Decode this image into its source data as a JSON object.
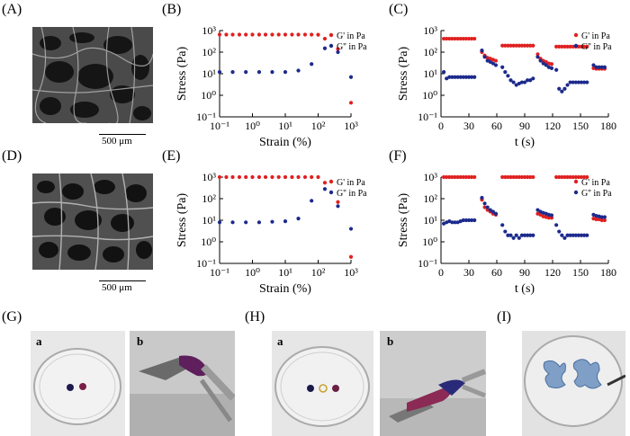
{
  "labels": {
    "A": "(A)",
    "B": "(B)",
    "C": "(C)",
    "D": "(D)",
    "E": "(E)",
    "F": "(F)",
    "G": "(G)",
    "H": "(H)",
    "I": "(I)",
    "ga": "a",
    "gb": "b",
    "ha": "a",
    "hb": "b"
  },
  "scale_A": "500 μm",
  "scale_D": "500 μm",
  "chart_data": [
    {
      "id": "B",
      "type": "scatter",
      "ylabel": "Stress (Pa)",
      "xlabel": "Strain (%)",
      "xscale": "log",
      "yscale": "log",
      "xlim": [
        0.1,
        1000
      ],
      "ylim": [
        0.1,
        1000
      ],
      "xticks": [
        "10⁻¹",
        "10⁰",
        "10¹",
        "10²",
        "10³"
      ],
      "yticks": [
        "10⁻¹",
        "10⁰",
        "10¹",
        "10²",
        "10³"
      ],
      "legend_position": "top-right",
      "series": [
        {
          "name": "G' in Pa",
          "color": "#e02020",
          "x": [
            0.1,
            0.16,
            0.25,
            0.4,
            0.63,
            1,
            1.6,
            2.5,
            4,
            6.3,
            10,
            16,
            25,
            40,
            63,
            100,
            160,
            400,
            1000
          ],
          "y": [
            650,
            650,
            650,
            650,
            650,
            650,
            650,
            650,
            650,
            650,
            650,
            650,
            650,
            650,
            650,
            640,
            420,
            140,
            0.45
          ]
        },
        {
          "name": "G'' in Pa",
          "color": "#1c2a8c",
          "x": [
            0.1,
            0.25,
            0.63,
            1.6,
            4,
            10,
            25,
            63,
            160,
            400,
            1000
          ],
          "y": [
            12,
            12,
            12,
            12,
            12,
            12,
            14,
            28,
            150,
            100,
            7
          ]
        }
      ]
    },
    {
      "id": "C",
      "type": "scatter",
      "ylabel": "Stress (Pa)",
      "xlabel": "t (s)",
      "yscale": "log",
      "xlim": [
        0,
        180
      ],
      "ylim": [
        0.1,
        1000
      ],
      "xticks": [
        "0",
        "30",
        "60",
        "90",
        "120",
        "150",
        "180"
      ],
      "yticks": [
        "10⁻¹",
        "10⁰",
        "10¹",
        "10²",
        "10³"
      ],
      "legend_position": "top-right",
      "series": [
        {
          "name": "G' in Pa",
          "color": "#e02020",
          "x": [
            3,
            6,
            9,
            12,
            15,
            18,
            21,
            24,
            27,
            30,
            33,
            36,
            44,
            47,
            50,
            53,
            56,
            59,
            66,
            69,
            72,
            75,
            78,
            81,
            84,
            87,
            90,
            93,
            96,
            99,
            104,
            107,
            110,
            113,
            116,
            119,
            124,
            127,
            130,
            133,
            136,
            139,
            142,
            145,
            148,
            151,
            154,
            157,
            164,
            167,
            170,
            173,
            176
          ],
          "y": [
            420,
            420,
            420,
            420,
            420,
            420,
            420,
            420,
            420,
            420,
            420,
            420,
            100,
            70,
            55,
            50,
            45,
            40,
            200,
            200,
            200,
            200,
            200,
            200,
            200,
            200,
            200,
            200,
            200,
            200,
            80,
            50,
            40,
            35,
            30,
            28,
            180,
            180,
            180,
            180,
            180,
            180,
            180,
            180,
            180,
            180,
            180,
            180,
            18,
            17,
            17,
            17,
            17
          ]
        },
        {
          "name": "G'' in Pa",
          "color": "#1c2a8c",
          "x": [
            3,
            6,
            9,
            12,
            15,
            18,
            21,
            24,
            27,
            30,
            33,
            36,
            44,
            47,
            50,
            53,
            56,
            59,
            66,
            69,
            72,
            75,
            78,
            81,
            84,
            87,
            90,
            93,
            96,
            99,
            104,
            107,
            110,
            113,
            116,
            119,
            124,
            127,
            130,
            133,
            136,
            139,
            142,
            145,
            148,
            151,
            154,
            157,
            164,
            167,
            170,
            173,
            176
          ],
          "y": [
            12,
            6,
            7,
            7,
            7,
            7,
            7,
            7,
            7,
            7,
            7,
            7,
            120,
            60,
            40,
            35,
            30,
            25,
            20,
            12,
            8,
            5,
            4,
            3,
            3.5,
            4,
            4,
            5,
            5,
            6,
            60,
            40,
            30,
            25,
            20,
            18,
            15,
            2,
            1.5,
            2,
            3,
            4,
            4,
            4,
            4,
            4,
            4,
            4,
            25,
            20,
            20,
            20,
            20
          ]
        }
      ]
    },
    {
      "id": "E",
      "type": "scatter",
      "ylabel": "Stress (Pa)",
      "xlabel": "Strain (%)",
      "xscale": "log",
      "yscale": "log",
      "xlim": [
        0.1,
        1000
      ],
      "ylim": [
        0.1,
        1000
      ],
      "xticks": [
        "10⁻¹",
        "10⁰",
        "10¹",
        "10²",
        "10³"
      ],
      "yticks": [
        "10⁻¹",
        "10⁰",
        "10¹",
        "10²",
        "10³"
      ],
      "legend_position": "top-right",
      "series": [
        {
          "name": "G' in Pa",
          "color": "#e02020",
          "x": [
            0.1,
            0.16,
            0.25,
            0.4,
            0.63,
            1,
            1.6,
            2.5,
            4,
            6.3,
            10,
            16,
            25,
            40,
            63,
            100,
            160,
            400,
            1000
          ],
          "y": [
            1300,
            1300,
            1300,
            1300,
            1300,
            1300,
            1300,
            1300,
            1300,
            1300,
            1300,
            1300,
            1300,
            1300,
            1300,
            1250,
            550,
            70,
            0.2
          ]
        },
        {
          "name": "G'' in Pa",
          "color": "#1c2a8c",
          "x": [
            0.1,
            0.25,
            0.63,
            1.6,
            4,
            10,
            25,
            63,
            160,
            400,
            1000
          ],
          "y": [
            8,
            8,
            8,
            8,
            8.5,
            9,
            12,
            80,
            280,
            45,
            4
          ]
        }
      ]
    },
    {
      "id": "F",
      "type": "scatter",
      "ylabel": "Stress (Pa)",
      "xlabel": "t (s)",
      "yscale": "log",
      "xlim": [
        0,
        180
      ],
      "ylim": [
        0.1,
        1000
      ],
      "xticks": [
        "0",
        "30",
        "60",
        "90",
        "120",
        "150",
        "180"
      ],
      "yticks": [
        "10⁻¹",
        "10⁰",
        "10¹",
        "10²",
        "10³"
      ],
      "legend_position": "top-right",
      "series": [
        {
          "name": "G' in Pa",
          "color": "#e02020",
          "x": [
            3,
            6,
            9,
            12,
            15,
            18,
            21,
            24,
            27,
            30,
            33,
            36,
            44,
            47,
            50,
            53,
            56,
            59,
            66,
            69,
            72,
            75,
            78,
            81,
            84,
            87,
            90,
            93,
            96,
            99,
            104,
            107,
            110,
            113,
            116,
            119,
            124,
            127,
            130,
            133,
            136,
            139,
            142,
            145,
            148,
            151,
            154,
            157,
            164,
            167,
            170,
            173,
            176
          ],
          "y": [
            1400,
            1400,
            1400,
            1400,
            1400,
            1400,
            1400,
            1400,
            1400,
            1400,
            1400,
            1400,
            90,
            40,
            30,
            25,
            20,
            18,
            1000,
            1000,
            1000,
            1000,
            1000,
            1000,
            1000,
            1000,
            1000,
            1000,
            1000,
            1000,
            20,
            18,
            15,
            14,
            13,
            13,
            1000,
            1000,
            1000,
            1000,
            1000,
            1000,
            1000,
            1000,
            1000,
            1000,
            1000,
            1000,
            12,
            11,
            11,
            10,
            10
          ]
        },
        {
          "name": "G'' in Pa",
          "color": "#1c2a8c",
          "x": [
            3,
            6,
            9,
            12,
            15,
            18,
            21,
            24,
            27,
            30,
            33,
            36,
            44,
            47,
            50,
            53,
            56,
            59,
            66,
            69,
            72,
            75,
            78,
            81,
            84,
            87,
            90,
            93,
            96,
            99,
            104,
            107,
            110,
            113,
            116,
            119,
            124,
            127,
            130,
            133,
            136,
            139,
            142,
            145,
            148,
            151,
            154,
            157,
            164,
            167,
            170,
            173,
            176
          ],
          "y": [
            7,
            8,
            9,
            8,
            8,
            8,
            9,
            10,
            10,
            10,
            10,
            10,
            110,
            60,
            40,
            30,
            25,
            20,
            6,
            3,
            2,
            2,
            1.5,
            2,
            1.5,
            2,
            2,
            2,
            2,
            2,
            30,
            25,
            22,
            20,
            18,
            17,
            6,
            3,
            2,
            1.5,
            2,
            2,
            2,
            2,
            2,
            2,
            2,
            2,
            18,
            16,
            15,
            14,
            14
          ]
        }
      ]
    }
  ]
}
